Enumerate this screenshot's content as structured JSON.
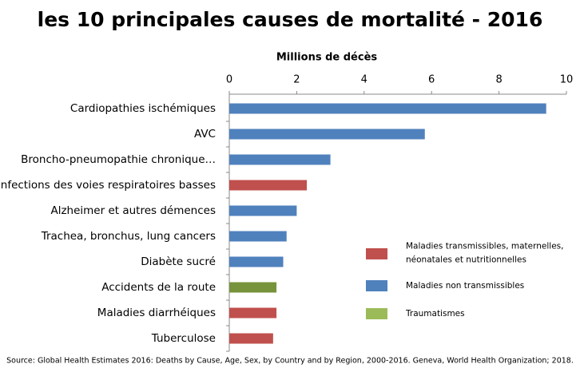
{
  "chart_data": {
    "type": "bar",
    "orientation": "horizontal",
    "title": "les 10 principales causes de mortalité - 2016",
    "x_label": "Millions de décès",
    "categories": [
      "Cardiopathies ischémiques",
      "AVC",
      "Broncho-pneumopathie chronique…",
      "Infections des voies respiratoires basses",
      "Alzheimer et autres démences",
      "Trachea, bronchus, lung cancers",
      "Diabète sucré",
      "Accidents de la route",
      "Maladies diarrhéiques",
      "Tuberculose"
    ],
    "values": [
      9.4,
      5.8,
      3.0,
      2.3,
      2.0,
      1.7,
      1.6,
      1.4,
      1.4,
      1.3
    ],
    "colors": [
      "#4f81bd",
      "#4f81bd",
      "#4f81bd",
      "#c0504d",
      "#4f81bd",
      "#4f81bd",
      "#4f81bd",
      "#77933c",
      "#c0504d",
      "#c0504d"
    ],
    "xlim": [
      0,
      10
    ],
    "xticks": [
      0,
      2,
      4,
      6,
      8,
      10
    ],
    "legend": [
      {
        "lines": [
          "Maladies transmissibles, maternelles,",
          "néonatales et nutritionnelles"
        ],
        "color": "#c0504d"
      },
      {
        "lines": [
          "Maladies non transmissibles"
        ],
        "color": "#4f81bd"
      },
      {
        "lines": [
          "Traumatismes"
        ],
        "color": "#9bbb59"
      }
    ],
    "source": "Source: Global Health Estimates 2016: Deaths by Cause, Age, Sex, by Country and by Region, 2000-2016. Geneva, World Health Organization; 2018."
  }
}
